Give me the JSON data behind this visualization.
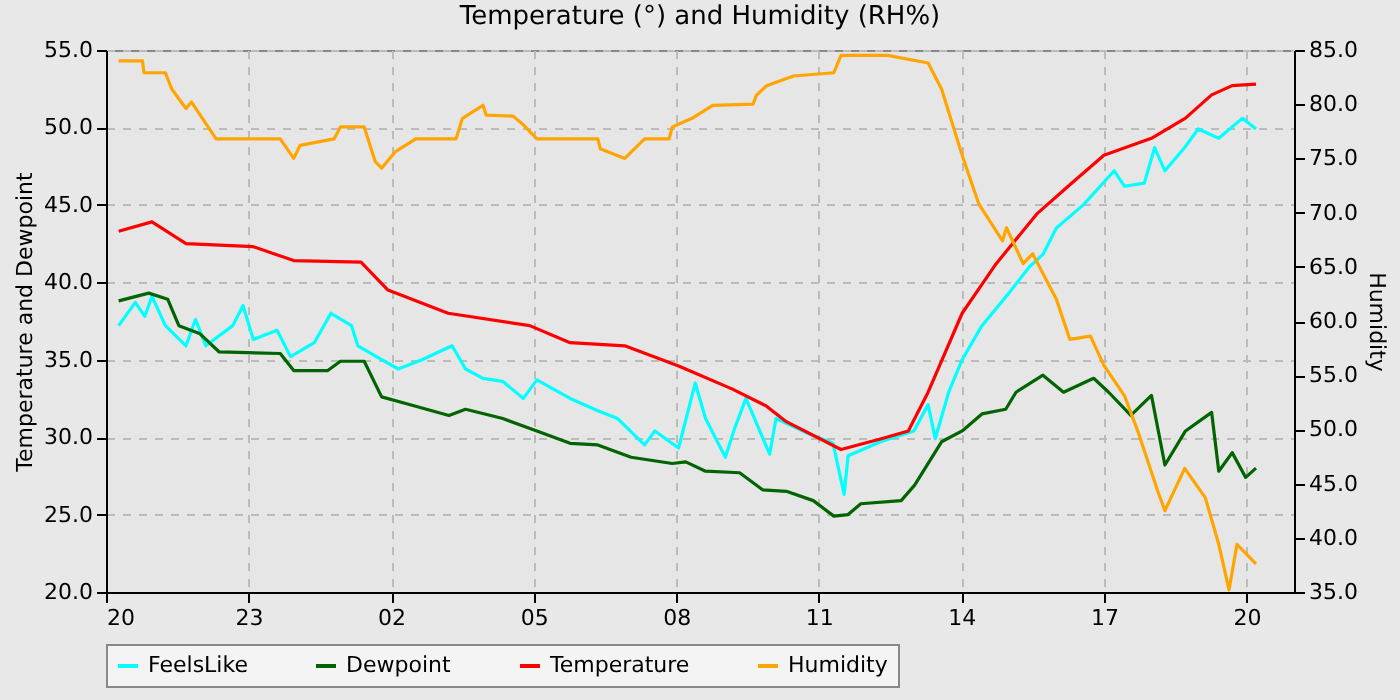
{
  "chart_data": {
    "type": "line",
    "title": "Temperature (°) and Humidity (RH%)",
    "ylabel": "Temperature and Dewpoint",
    "y2label": "Humidity",
    "xlim": [
      "--01-01T20:00",
      "--01-02T21:00"
    ],
    "xticks": [
      {
        "value": "--01-01T20:00",
        "label": "20"
      },
      {
        "value": "--01-01T23:00",
        "label": "23"
      },
      {
        "value": "--01-02T02:00",
        "label": "02"
      },
      {
        "value": "--01-02T05:00",
        "label": "05"
      },
      {
        "value": "--01-02T08:00",
        "label": "08"
      },
      {
        "value": "--01-02T11:00",
        "label": "11"
      },
      {
        "value": "--01-02T14:00",
        "label": "14"
      },
      {
        "value": "--01-02T17:00",
        "label": "17"
      },
      {
        "value": "--01-02T20:00",
        "label": "20"
      }
    ],
    "ylim": [
      20,
      55
    ],
    "yticks": [
      {
        "value": 20,
        "label": "20.0"
      },
      {
        "value": 25,
        "label": "25.0"
      },
      {
        "value": 30,
        "label": "30.0"
      },
      {
        "value": 35,
        "label": "35.0"
      },
      {
        "value": 40,
        "label": "40.0"
      },
      {
        "value": 45,
        "label": "45.0"
      },
      {
        "value": 50,
        "label": "50.0"
      },
      {
        "value": 55,
        "label": "55.0"
      }
    ],
    "y2lim": [
      35,
      85
    ],
    "y2ticks": [
      {
        "value": 35,
        "label": "35.0"
      },
      {
        "value": 40,
        "label": "40.0"
      },
      {
        "value": 45,
        "label": "45.0"
      },
      {
        "value": 50,
        "label": "50.0"
      },
      {
        "value": 55,
        "label": "55.0"
      },
      {
        "value": 60,
        "label": "60.0"
      },
      {
        "value": 65,
        "label": "65.0"
      },
      {
        "value": 70,
        "label": "70.0"
      },
      {
        "value": 75,
        "label": "75.0"
      },
      {
        "value": 80,
        "label": "80.0"
      },
      {
        "value": 85,
        "label": "85.0"
      }
    ],
    "grid": true,
    "legend": "bottom",
    "series": [
      {
        "name": "FeelsLike",
        "color": "#00ffff",
        "x": [
          "--01-01T20:16",
          "--01-01T20:37",
          "--01-01T20:49",
          "--01-01T20:58",
          "--01-01T21:15",
          "--01-01T21:41",
          "--01-01T21:53",
          "--01-01T22:06",
          "--01-01T22:40",
          "--01-01T22:53",
          "--01-01T23:06",
          "--01-01T23:36",
          "--01-01T23:53",
          "--01-02T00:23",
          "--01-02T00:44",
          "--01-02T01:10",
          "--01-02T01:18",
          "--01-02T01:48",
          "--01-02T02:09",
          "--01-02T02:39",
          "--01-02T03:17",
          "--01-02T03:34",
          "--01-02T03:56",
          "--01-02T04:21",
          "--01-02T04:47",
          "--01-02T05:04",
          "--01-02T05:46",
          "--01-02T06:21",
          "--01-02T06:46",
          "--01-02T07:20",
          "--01-02T07:33",
          "--01-02T08:03",
          "--01-02T08:24",
          "--01-02T08:37",
          "--01-02T09:02",
          "--01-02T09:14",
          "--01-02T09:28",
          "--01-02T09:58",
          "--01-02T10:06",
          "--01-02T10:48",
          "--01-02T11:18",
          "--01-02T11:32",
          "--01-02T11:37",
          "--01-02T12:18",
          "--01-02T13:00",
          "--01-02T13:18",
          "--01-02T13:27",
          "--01-02T13:44",
          "--01-02T14:01",
          "--01-02T14:26",
          "--01-02T15:00",
          "--01-02T15:26",
          "--01-02T15:43",
          "--01-02T16:00",
          "--01-02T16:34",
          "--01-02T17:13",
          "--01-02T17:26",
          "--01-02T17:51",
          "--01-02T18:04",
          "--01-02T18:17",
          "--01-02T18:42",
          "--01-02T18:59",
          "--01-02T19:25",
          "--01-02T19:55",
          "--01-02T20:12"
        ],
        "values": [
          37.2,
          38.7,
          37.8,
          39.1,
          37.2,
          35.9,
          37.6,
          35.9,
          37.2,
          38.5,
          36.3,
          36.9,
          35.2,
          36.1,
          38.0,
          37.2,
          35.9,
          35.0,
          34.4,
          35.0,
          35.9,
          34.4,
          33.8,
          33.6,
          32.5,
          33.7,
          32.5,
          31.7,
          31.2,
          29.5,
          30.4,
          29.3,
          33.5,
          31.2,
          28.7,
          30.6,
          32.5,
          28.9,
          31.2,
          30.2,
          29.6,
          26.3,
          28.8,
          29.7,
          30.4,
          32.1,
          29.9,
          32.9,
          35.0,
          37.2,
          39.3,
          41.0,
          41.8,
          43.5,
          45.0,
          47.2,
          46.2,
          46.4,
          48.7,
          47.2,
          48.7,
          49.9,
          49.3,
          50.6,
          49.9
        ]
      },
      {
        "name": "Dewpoint",
        "color": "#006400",
        "x": [
          "--01-01T20:16",
          "--01-01T20:54",
          "--01-01T21:18",
          "--01-01T21:32",
          "--01-01T21:58",
          "--01-01T22:23",
          "--01-01T23:40",
          "--01-01T23:57",
          "--01-02T00:40",
          "--01-02T00:56",
          "--01-02T01:26",
          "--01-02T01:48",
          "--01-02T02:31",
          "--01-02T03:13",
          "--01-02T03:34",
          "--01-02T04:21",
          "--01-02T05:04",
          "--01-02T05:46",
          "--01-02T06:21",
          "--01-02T07:03",
          "--01-02T07:55",
          "--01-02T08:12",
          "--01-02T08:37",
          "--01-02T09:20",
          "--01-02T09:49",
          "--01-02T10:19",
          "--01-02T10:53",
          "--01-02T11:19",
          "--01-02T11:37",
          "--01-02T11:53",
          "--01-02T12:44",
          "--01-02T13:01",
          "--01-02T13:35",
          "--01-02T14:01",
          "--01-02T14:26",
          "--01-02T14:56",
          "--01-02T15:09",
          "--01-02T15:43",
          "--01-02T16:09",
          "--01-02T16:47",
          "--01-02T17:06",
          "--01-02T17:34",
          "--01-02T18:00",
          "--01-02T18:17",
          "--01-02T18:43",
          "--01-02T19:16",
          "--01-02T19:25",
          "--01-02T19:42",
          "--01-02T19:59",
          "--01-02T20:12"
        ],
        "values": [
          38.8,
          39.3,
          38.9,
          37.2,
          36.7,
          35.5,
          35.4,
          34.3,
          34.3,
          34.9,
          34.9,
          32.6,
          32.0,
          31.4,
          31.8,
          31.2,
          30.4,
          29.6,
          29.5,
          28.7,
          28.3,
          28.4,
          27.8,
          27.7,
          26.6,
          26.5,
          25.9,
          24.9,
          25.0,
          25.7,
          25.9,
          26.9,
          29.7,
          30.4,
          31.5,
          31.8,
          32.9,
          34.0,
          32.9,
          33.8,
          32.9,
          31.4,
          32.7,
          28.2,
          30.4,
          31.6,
          27.8,
          29.0,
          27.4,
          28.0
        ]
      },
      {
        "name": "Temperature",
        "color": "#ff0000",
        "x": [
          "--01-01T20:16",
          "--01-01T20:58",
          "--01-01T21:41",
          "--01-01T23:06",
          "--01-01T23:57",
          "--01-02T01:22",
          "--01-02T01:56",
          "--01-02T03:12",
          "--01-02T04:55",
          "--01-02T05:46",
          "--01-02T06:55",
          "--01-02T08:03",
          "--01-02T09:11",
          "--01-02T09:54",
          "--01-02T10:19",
          "--01-02T11:28",
          "--01-02T12:19",
          "--01-02T12:53",
          "--01-02T13:18",
          "--01-02T14:01",
          "--01-02T14:44",
          "--01-02T15:35",
          "--01-02T16:17",
          "--01-02T17:00",
          "--01-02T18:00",
          "--01-02T18:43",
          "--01-02T19:16",
          "--01-02T19:42",
          "--01-02T20:12"
        ],
        "values": [
          43.3,
          43.9,
          42.5,
          42.3,
          41.4,
          41.3,
          39.5,
          38.0,
          37.2,
          36.1,
          35.9,
          34.6,
          33.1,
          32.0,
          31.0,
          29.2,
          29.9,
          30.4,
          32.9,
          38.0,
          41.2,
          44.4,
          46.3,
          48.2,
          49.3,
          50.6,
          52.1,
          52.7,
          52.8
        ]
      },
      {
        "name": "Humidity",
        "color": "#ffa500",
        "axis": "y2",
        "x": [
          "--01-01T20:16",
          "--01-01T20:46",
          "--01-01T20:48",
          "--01-01T21:15",
          "--01-01T21:23",
          "--01-01T21:41",
          "--01-01T21:48",
          "--01-01T22:19",
          "--01-01T23:40",
          "--01-01T23:57",
          "--01-02T00:05",
          "--01-02T00:48",
          "--01-02T00:56",
          "--01-02T01:26",
          "--01-02T01:40",
          "--01-02T01:48",
          "--01-02T02:05",
          "--01-02T02:31",
          "--01-02T03:22",
          "--01-02T03:30",
          "--01-02T03:56",
          "--01-02T04:00",
          "--01-02T04:34",
          "--01-02T04:47",
          "--01-02T05:04",
          "--01-02T06:21",
          "--01-02T06:24",
          "--01-02T06:55",
          "--01-02T07:20",
          "--01-02T07:51",
          "--01-02T07:55",
          "--01-02T08:20",
          "--01-02T08:46",
          "--01-02T09:37",
          "--01-02T09:41",
          "--01-02T09:54",
          "--01-02T10:28",
          "--01-02T11:19",
          "--01-02T11:28",
          "--01-02T12:27",
          "--01-02T13:18",
          "--01-02T13:35",
          "--01-02T14:01",
          "--01-02T14:22",
          "--01-02T14:52",
          "--01-02T14:57",
          "--01-02T15:18",
          "--01-02T15:30",
          "--01-02T16:00",
          "--01-02T16:17",
          "--01-02T16:43",
          "--01-02T17:00",
          "--01-02T17:26",
          "--01-02T17:43",
          "--01-02T18:08",
          "--01-02T18:17",
          "--01-02T18:42",
          "--01-02T19:08",
          "--01-02T19:25",
          "--01-02T19:38",
          "--01-02T19:48",
          "--01-02T20:12"
        ],
        "values": [
          84.0,
          84.0,
          82.9,
          82.9,
          81.4,
          79.6,
          80.2,
          76.8,
          76.8,
          75.0,
          76.2,
          76.8,
          77.9,
          77.9,
          74.7,
          74.1,
          75.6,
          76.8,
          76.8,
          78.7,
          79.9,
          79.0,
          78.9,
          78.1,
          76.8,
          76.8,
          75.9,
          75.0,
          76.8,
          76.8,
          77.9,
          78.7,
          79.9,
          80.0,
          80.8,
          81.7,
          82.6,
          82.9,
          84.5,
          84.5,
          83.8,
          81.4,
          75.3,
          70.8,
          67.4,
          68.6,
          65.3,
          66.2,
          62.0,
          58.3,
          58.6,
          55.9,
          53.1,
          49.8,
          44.3,
          42.5,
          46.4,
          43.7,
          39.4,
          35.2,
          39.4,
          37.6
        ]
      }
    ]
  }
}
